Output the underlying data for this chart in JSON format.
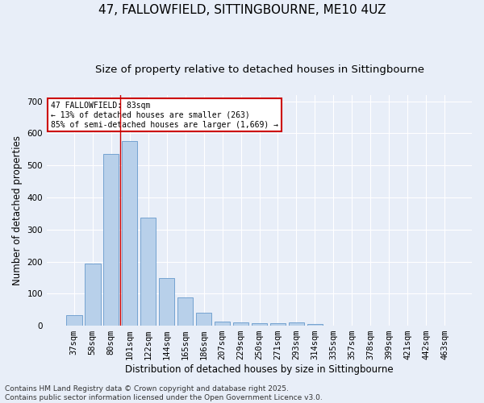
{
  "title": "47, FALLOWFIELD, SITTINGBOURNE, ME10 4UZ",
  "subtitle": "Size of property relative to detached houses in Sittingbourne",
  "xlabel": "Distribution of detached houses by size in Sittingbourne",
  "ylabel": "Number of detached properties",
  "bar_labels": [
    "37sqm",
    "58sqm",
    "80sqm",
    "101sqm",
    "122sqm",
    "144sqm",
    "165sqm",
    "186sqm",
    "207sqm",
    "229sqm",
    "250sqm",
    "271sqm",
    "293sqm",
    "314sqm",
    "335sqm",
    "357sqm",
    "378sqm",
    "399sqm",
    "421sqm",
    "442sqm",
    "463sqm"
  ],
  "bar_values": [
    32,
    193,
    535,
    577,
    337,
    148,
    88,
    40,
    14,
    11,
    8,
    8,
    11,
    4,
    0,
    0,
    0,
    0,
    0,
    0,
    0
  ],
  "bar_color": "#b8d0ea",
  "bar_edge_color": "#6699cc",
  "background_color": "#e8eef8",
  "grid_color": "#ffffff",
  "vline_x": 2.5,
  "vline_color": "#cc0000",
  "annotation_text": "47 FALLOWFIELD: 83sqm\n← 13% of detached houses are smaller (263)\n85% of semi-detached houses are larger (1,669) →",
  "annotation_box_color": "#ffffff",
  "annotation_box_edge": "#cc0000",
  "ylim": [
    0,
    720
  ],
  "yticks": [
    0,
    100,
    200,
    300,
    400,
    500,
    600,
    700
  ],
  "footer_text": "Contains HM Land Registry data © Crown copyright and database right 2025.\nContains public sector information licensed under the Open Government Licence v3.0.",
  "title_fontsize": 11,
  "subtitle_fontsize": 9.5,
  "label_fontsize": 8.5,
  "tick_fontsize": 7.5,
  "footer_fontsize": 6.5
}
